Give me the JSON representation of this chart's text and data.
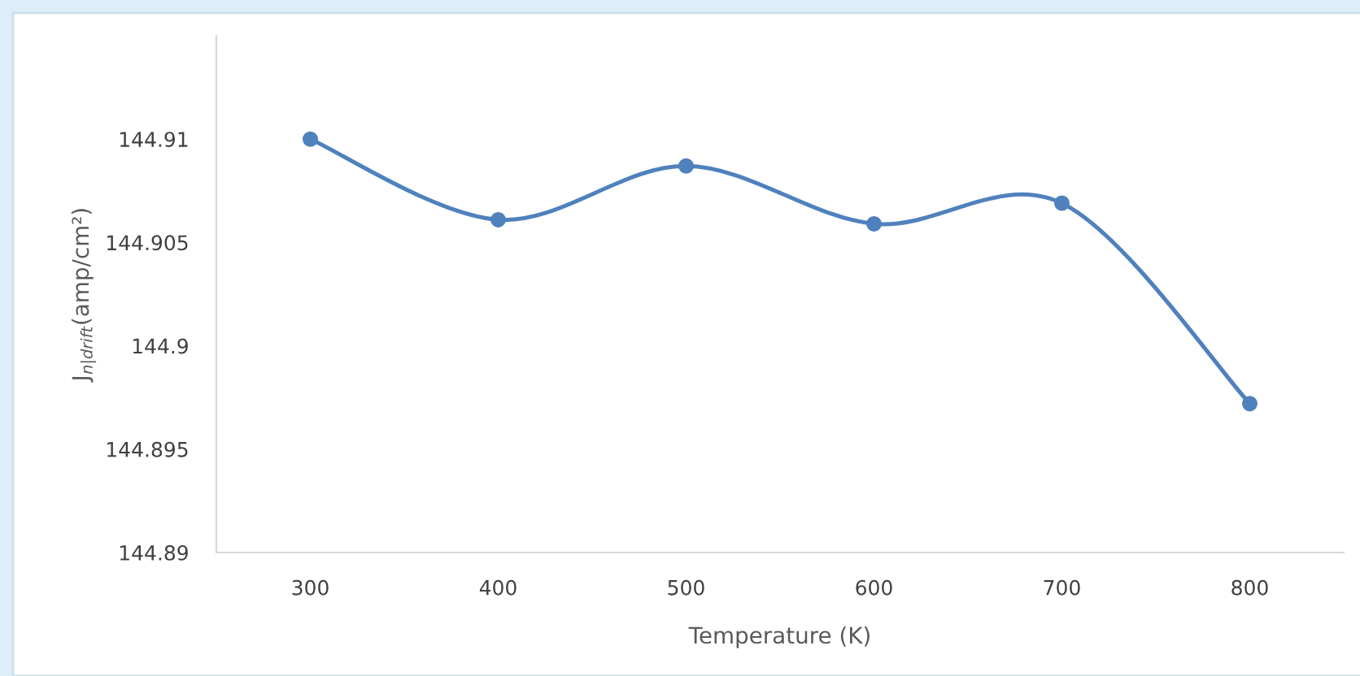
{
  "chart_data": {
    "type": "line",
    "xlabel": "Temperature (K)",
    "ylabel": "J$_{n|drift}$(amp/cm²)",
    "categories": [
      "300",
      "400",
      "500",
      "600",
      "700",
      "800"
    ],
    "series": [
      {
        "color": "#4f81bd",
        "values": [
          144.91,
          144.9061,
          144.9087,
          144.9059,
          144.9069,
          144.8972
        ]
      }
    ],
    "ylim": [
      144.89,
      144.915
    ],
    "yticks": [
      144.89,
      144.895,
      144.9,
      144.905,
      144.91
    ],
    "grid": false,
    "legend": false,
    "marker": "circle",
    "line_style": "solid"
  }
}
